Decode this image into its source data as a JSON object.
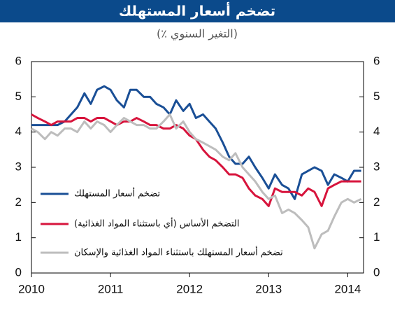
{
  "chart_data": {
    "type": "line",
    "title": "تضخم أسعار المستهلك",
    "subtitle": "(٪ التغير السنوي)",
    "x": [
      2010.0,
      2010.08,
      2010.17,
      2010.25,
      2010.33,
      2010.42,
      2010.5,
      2010.58,
      2010.67,
      2010.75,
      2010.83,
      2010.92,
      2011.0,
      2011.08,
      2011.17,
      2011.25,
      2011.33,
      2011.42,
      2011.5,
      2011.58,
      2011.67,
      2011.75,
      2011.83,
      2011.92,
      2012.0,
      2012.08,
      2012.17,
      2012.25,
      2012.33,
      2012.42,
      2012.5,
      2012.58,
      2012.67,
      2012.75,
      2012.83,
      2012.92,
      2013.0,
      2013.08,
      2013.17,
      2013.25,
      2013.33,
      2013.42,
      2013.5,
      2013.58,
      2013.67,
      2013.75,
      2013.83,
      2013.92,
      2014.0,
      2014.08,
      2014.17
    ],
    "series": [
      {
        "name": "تضخم أسعار المستهلك",
        "color": "#1a4f96",
        "values": [
          4.2,
          4.2,
          4.2,
          4.2,
          4.2,
          4.3,
          4.5,
          4.7,
          5.1,
          4.8,
          5.2,
          5.3,
          5.2,
          4.9,
          4.7,
          5.2,
          5.2,
          5.0,
          5.0,
          4.8,
          4.7,
          4.5,
          4.9,
          4.6,
          4.8,
          4.4,
          4.5,
          4.3,
          4.1,
          3.7,
          3.3,
          3.1,
          3.1,
          3.3,
          3.0,
          2.7,
          2.4,
          2.8,
          2.5,
          2.4,
          2.1,
          2.8,
          2.9,
          3.0,
          2.9,
          2.5,
          2.8,
          2.7,
          2.6,
          2.9,
          2.9
        ]
      },
      {
        "name": "التضخم الأساس (أي باستثناء المواد الغذائية)",
        "color": "#d7143c",
        "values": [
          4.5,
          4.4,
          4.3,
          4.2,
          4.3,
          4.3,
          4.3,
          4.4,
          4.4,
          4.3,
          4.4,
          4.4,
          4.3,
          4.2,
          4.3,
          4.3,
          4.4,
          4.3,
          4.2,
          4.2,
          4.1,
          4.1,
          4.2,
          4.1,
          3.9,
          3.8,
          3.5,
          3.3,
          3.2,
          3.0,
          2.8,
          2.8,
          2.7,
          2.4,
          2.2,
          2.1,
          1.9,
          2.4,
          2.3,
          2.3,
          2.3,
          2.2,
          2.4,
          2.3,
          1.9,
          2.4,
          2.5,
          2.6,
          2.6,
          2.6,
          2.6
        ]
      },
      {
        "name": "تضخم أسعار المستهلك باستثناء المواد الغذائية والإسكان",
        "color": "#bdbdbd",
        "values": [
          4.1,
          4.0,
          3.8,
          4.0,
          3.9,
          4.1,
          4.1,
          4.0,
          4.3,
          4.1,
          4.3,
          4.2,
          4.0,
          4.2,
          4.4,
          4.3,
          4.2,
          4.2,
          4.1,
          4.1,
          4.3,
          4.5,
          4.1,
          4.3,
          4.0,
          3.8,
          3.7,
          3.6,
          3.5,
          3.3,
          3.2,
          3.4,
          3.0,
          2.8,
          2.6,
          2.3,
          2.1,
          2.2,
          1.7,
          1.8,
          1.7,
          1.5,
          1.3,
          0.7,
          1.1,
          1.2,
          1.6,
          2.0,
          2.1,
          2.0,
          2.1
        ]
      }
    ],
    "xlim": [
      2010,
      2014.2
    ],
    "xticks": [
      2010,
      2011,
      2012,
      2013,
      2014
    ],
    "ylim": [
      0,
      6
    ],
    "yticks": [
      0,
      1,
      2,
      3,
      4,
      5,
      6
    ],
    "grid": false
  }
}
